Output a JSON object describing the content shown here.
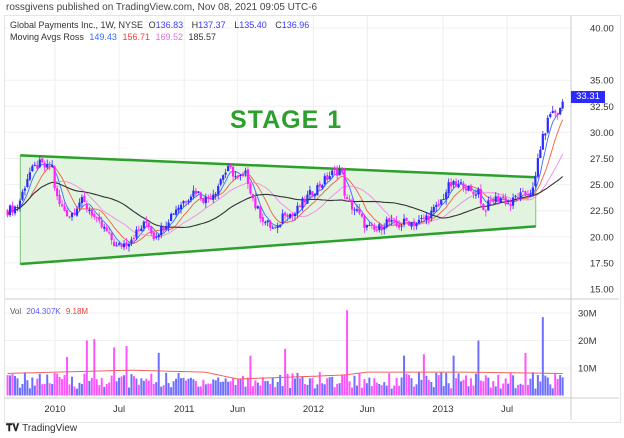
{
  "header": {
    "published": "rossgivens published on TradingView.com, Nov 08, 2021 09:05 UTC-6"
  },
  "legend": {
    "symbol": "Global Payments Inc., 1W, NYSE",
    "o_label": "O",
    "o": "136.83",
    "h_label": "H",
    "h": "137.37",
    "l_label": "L",
    "l": "135.40",
    "c_label": "C",
    "c": "136.96",
    "ma_label": "Moving Avgs Ross",
    "ma_values": [
      "149.43",
      "156.71",
      "169.52",
      "185.57"
    ],
    "vol_label": "Vol",
    "vol_value": "204.307K",
    "vol_ma_value": "9.18M"
  },
  "annotation": {
    "text": "STAGE 1"
  },
  "footer": {
    "brand": "TradingView"
  },
  "colors": {
    "up": "#2b2bff",
    "down": "#ff22ff",
    "vol_up": "#6f6fff",
    "vol_down": "#ff55ff",
    "ma1": "#3b6bff",
    "ma2": "#f06040",
    "ma3": "#f08ae8",
    "ma4": "#333333",
    "vol_ma": "#f06060",
    "stage": "#2ca02c",
    "stage_fill": "#e2f3df"
  },
  "chart_data": {
    "type": "candlestick",
    "interval": "1W",
    "last_price": "33.31",
    "y_ticks": [
      "40.00",
      "35.00",
      "32.50",
      "30.00",
      "27.50",
      "25.00",
      "22.50",
      "20.00",
      "17.50",
      "15.00"
    ],
    "y_tick_values": [
      40,
      35,
      32.5,
      30,
      27.5,
      25,
      22.5,
      20,
      17.5,
      15
    ],
    "ylim": [
      14,
      41.5
    ],
    "x_ticks": [
      {
        "label": "2010",
        "date": "2010-01-01"
      },
      {
        "label": "Jul",
        "date": "2010-07-01"
      },
      {
        "label": "2011",
        "date": "2011-01-01"
      },
      {
        "label": "Jun",
        "date": "2011-06-01"
      },
      {
        "label": "2012",
        "date": "2012-01-01"
      },
      {
        "label": "Jun",
        "date": "2012-06-01"
      },
      {
        "label": "2013",
        "date": "2013-01-01"
      },
      {
        "label": "Jul",
        "date": "2013-07-01"
      }
    ],
    "xlim": [
      "2009-08-10",
      "2013-12-10"
    ],
    "close_keyframes": [
      [
        "2009-08-20",
        22.5
      ],
      [
        "2009-09-19",
        23
      ],
      [
        "2009-10-04",
        24.5
      ],
      [
        "2009-10-18",
        26
      ],
      [
        "2009-11-17",
        27
      ],
      [
        "2009-12-13",
        26.5
      ],
      [
        "2009-12-22",
        27.3
      ],
      [
        "2010-01-03",
        24
      ],
      [
        "2010-01-15",
        23
      ],
      [
        "2010-02-13",
        22
      ],
      [
        "2010-03-14",
        23.5
      ],
      [
        "2010-04-12",
        22.5
      ],
      [
        "2010-04-27",
        21.5
      ],
      [
        "2010-05-26",
        20.5
      ],
      [
        "2010-06-24",
        19
      ],
      [
        "2010-07-24",
        19.5
      ],
      [
        "2010-08-22",
        20.5
      ],
      [
        "2010-09-20",
        21.5
      ],
      [
        "2010-10-05",
        20
      ],
      [
        "2010-11-03",
        21
      ],
      [
        "2010-12-03",
        22.5
      ],
      [
        "2011-01-01",
        23.5
      ],
      [
        "2011-02-01",
        24.5
      ],
      [
        "2011-03-01",
        23.5
      ],
      [
        "2011-04-01",
        24.5
      ],
      [
        "2011-04-20",
        26
      ],
      [
        "2011-05-10",
        26.5
      ],
      [
        "2011-06-01",
        25.5
      ],
      [
        "2011-06-25",
        26
      ],
      [
        "2011-07-20",
        23
      ],
      [
        "2011-08-15",
        21.5
      ],
      [
        "2011-09-01",
        21
      ],
      [
        "2011-09-20",
        20.5
      ],
      [
        "2011-10-10",
        22.5
      ],
      [
        "2011-11-05",
        22
      ],
      [
        "2011-11-25",
        23
      ],
      [
        "2011-12-20",
        24
      ],
      [
        "2012-01-20",
        25
      ],
      [
        "2012-02-20",
        26
      ],
      [
        "2012-03-20",
        26.5
      ],
      [
        "2012-04-01",
        23.5
      ],
      [
        "2012-05-01",
        22.5
      ],
      [
        "2012-05-28",
        21
      ],
      [
        "2012-06-25",
        20.5
      ],
      [
        "2012-07-25",
        21.5
      ],
      [
        "2012-08-25",
        21
      ],
      [
        "2012-09-20",
        21.5
      ],
      [
        "2012-10-20",
        21.3
      ],
      [
        "2012-11-20",
        22
      ],
      [
        "2012-12-20",
        23
      ],
      [
        "2013-01-20",
        25
      ],
      [
        "2013-02-15",
        24.8
      ],
      [
        "2013-03-01",
        25.1
      ],
      [
        "2013-03-25",
        24
      ],
      [
        "2013-04-10",
        24.6
      ],
      [
        "2013-04-25",
        22.5
      ],
      [
        "2013-05-20",
        23.5
      ],
      [
        "2013-06-15",
        23.8
      ],
      [
        "2013-07-10",
        23
      ],
      [
        "2013-07-25",
        23.8
      ],
      [
        "2013-08-20",
        24
      ],
      [
        "2013-09-15",
        24.5
      ],
      [
        "2013-09-28",
        28
      ],
      [
        "2013-10-15",
        30
      ],
      [
        "2013-11-01",
        32
      ],
      [
        "2013-11-25",
        31.8
      ],
      [
        "2013-12-08",
        33.31
      ]
    ],
    "volume_axis": {
      "ticks": [
        "30M",
        "20M",
        "10M"
      ],
      "values": [
        30,
        20,
        10
      ],
      "unit": "M"
    },
    "volume_spikes_m": [
      [
        "2010-02-01",
        14
      ],
      [
        "2010-04-01",
        20
      ],
      [
        "2010-04-20",
        20.5
      ],
      [
        "2010-06-15",
        17.5
      ],
      [
        "2010-07-20",
        18
      ],
      [
        "2010-10-20",
        15.5
      ],
      [
        "2011-07-10",
        14.5
      ],
      [
        "2011-10-10",
        17
      ],
      [
        "2012-04-05",
        31
      ],
      [
        "2012-09-15",
        14.5
      ],
      [
        "2012-11-10",
        15
      ],
      [
        "2013-02-01",
        14.5
      ],
      [
        "2013-04-10",
        20
      ],
      [
        "2013-08-20",
        15.5
      ],
      [
        "2013-10-10",
        28.5
      ]
    ],
    "volume_ma_m": [
      [
        "2009-08-10",
        8
      ],
      [
        "2010-08-01",
        9.2
      ],
      [
        "2011-03-01",
        8.5
      ],
      [
        "2011-06-01",
        6
      ],
      [
        "2012-01-01",
        7
      ],
      [
        "2012-04-01",
        7.5
      ],
      [
        "2012-06-01",
        8.5
      ],
      [
        "2013-03-01",
        8.5
      ],
      [
        "2013-12-08",
        8
      ]
    ],
    "stage_box": {
      "upper": [
        [
          "2009-09-25",
          27.8
        ],
        [
          "2013-09-20",
          25.7
        ]
      ],
      "lower": [
        [
          "2009-09-25",
          17.4
        ],
        [
          "2013-09-20",
          21.0
        ]
      ]
    }
  }
}
